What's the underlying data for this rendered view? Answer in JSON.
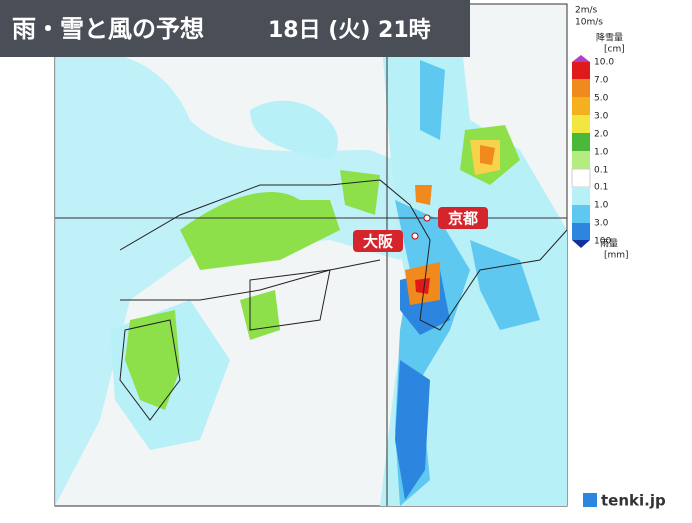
{
  "header": {
    "title": "雨・雪と風の予想",
    "time": "18日 (火) 21時"
  },
  "wind_legend": {
    "small": "2m/s",
    "large": "10m/s"
  },
  "snow_legend": {
    "title": "降雪量",
    "unit": "[cm]",
    "labels": [
      "10.0",
      "7.0",
      "5.0",
      "3.0",
      "2.0",
      "1.0",
      "0.1"
    ]
  },
  "rain_legend": {
    "labels": [
      "0.1",
      "1.0",
      "3.0",
      "100"
    ],
    "title": "雨量",
    "unit": "[mm]"
  },
  "cities": [
    {
      "label": "京都"
    },
    {
      "label": "大阪"
    }
  ],
  "logo": {
    "text": "tenki.jp"
  }
}
